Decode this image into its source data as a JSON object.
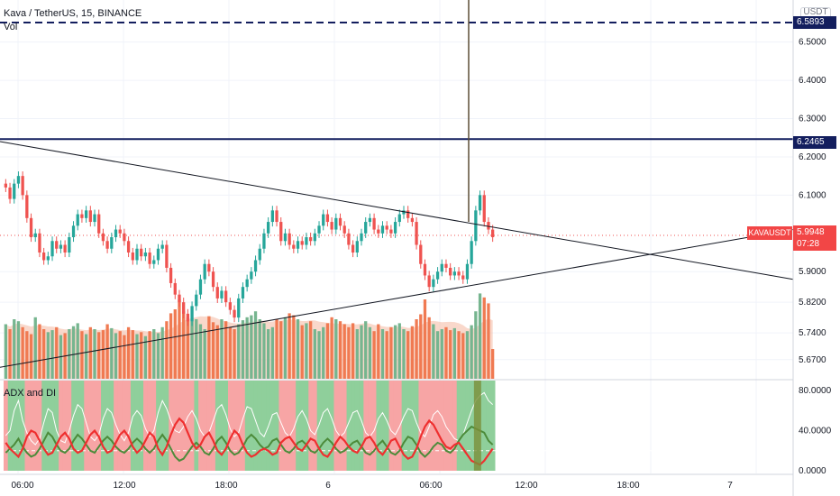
{
  "header": {
    "symbol_line": "Kava / TetherUS, 15, BINANCE",
    "volume_label": "Vol",
    "currency_button": "USDT"
  },
  "indicator": {
    "title": "ADX and DI"
  },
  "price_tags": {
    "current": "5.9948",
    "countdown": "07:28",
    "symbol": "KAVAUSDT",
    "level_line": "6.2465",
    "top_line": "6.5893"
  },
  "colors": {
    "up": "#26a69a",
    "down": "#ef5350",
    "level": "#131e5e",
    "trend": "#131722",
    "vol_up": "#76b58f",
    "vol_down": "#f07a52",
    "vol_ma": "#f4b8a1",
    "adx_bg_up": "#8fcf9b",
    "adx_bg_down": "#f7a5a5",
    "di_plus": "#4c8b3a",
    "di_minus": "#ef2f2f",
    "adx": "#ffffff"
  },
  "chart_data": {
    "type": "candlestick",
    "series_name": "KAVAUSDT",
    "ylim": [
      5.62,
      6.61
    ],
    "y_ticks": [
      "6.5000",
      "6.4000",
      "6.3000",
      "6.2000",
      "6.1000",
      "5.9000",
      "5.8200",
      "5.7400",
      "5.6700"
    ],
    "x_ticks": [
      "06:00",
      "12:00",
      "18:00",
      "6",
      "06:00",
      "12:00",
      "18:00",
      "7"
    ],
    "horizontal_levels": [
      6.2465,
      6.5893
    ],
    "last_price": 5.9948,
    "trend_lines": [
      {
        "from": [
          0,
          6.24
        ],
        "to": [
          880,
          5.88
        ]
      },
      {
        "from": [
          0,
          5.65
        ],
        "to": [
          880,
          6.01
        ]
      }
    ],
    "close": [
      6.12,
      6.09,
      6.13,
      6.15,
      6.1,
      6.04,
      5.99,
      6.0,
      5.95,
      5.93,
      5.94,
      5.98,
      5.96,
      5.97,
      5.95,
      5.99,
      6.02,
      6.05,
      6.04,
      6.06,
      6.03,
      6.05,
      6.0,
      5.98,
      5.96,
      5.99,
      6.01,
      6.0,
      5.98,
      5.95,
      5.93,
      5.96,
      5.94,
      5.95,
      5.92,
      5.93,
      5.96,
      5.97,
      5.91,
      5.87,
      5.84,
      5.82,
      5.79,
      5.77,
      5.81,
      5.84,
      5.88,
      5.92,
      5.9,
      5.86,
      5.83,
      5.85,
      5.82,
      5.8,
      5.78,
      5.83,
      5.86,
      5.88,
      5.9,
      5.93,
      5.96,
      6.0,
      6.03,
      6.06,
      6.03,
      5.98,
      6.0,
      5.97,
      5.96,
      5.98,
      5.97,
      5.99,
      5.98,
      6.0,
      6.02,
      6.05,
      6.03,
      6.01,
      6.04,
      6.02,
      6.0,
      5.97,
      5.95,
      5.98,
      6.0,
      6.03,
      6.04,
      6.01,
      6.0,
      6.02,
      6.01,
      6.0,
      6.03,
      6.05,
      6.06,
      6.04,
      6.03,
      5.97,
      5.92,
      5.89,
      5.86,
      5.88,
      5.9,
      5.92,
      5.91,
      5.89,
      5.9,
      5.89,
      5.88,
      5.92,
      5.98,
      6.06,
      6.1,
      6.03,
      6.01,
      5.99
    ],
    "volume": [
      55,
      50,
      60,
      58,
      52,
      48,
      45,
      62,
      55,
      50,
      47,
      49,
      52,
      44,
      46,
      50,
      53,
      56,
      48,
      45,
      52,
      50,
      47,
      49,
      55,
      51,
      46,
      48,
      44,
      52,
      49,
      45,
      47,
      43,
      48,
      50,
      46,
      52,
      58,
      66,
      70,
      80,
      68,
      62,
      58,
      60,
      55,
      50,
      63,
      57,
      54,
      60,
      58,
      52,
      50,
      55,
      59,
      62,
      64,
      68,
      60,
      56,
      50,
      52,
      60,
      58,
      62,
      66,
      64,
      60,
      54,
      56,
      58,
      50,
      48,
      52,
      56,
      62,
      60,
      58,
      55,
      52,
      56,
      50,
      54,
      58,
      52,
      48,
      55,
      50,
      48,
      52,
      54,
      56,
      50,
      48,
      53,
      60,
      65,
      80,
      62,
      55,
      48,
      50,
      52,
      49,
      51,
      48,
      46,
      48,
      54,
      68,
      86,
      82,
      76,
      30
    ],
    "adx": [
      35,
      40,
      60,
      70,
      50,
      38,
      30,
      26,
      32,
      48,
      62,
      58,
      40,
      30,
      28,
      40,
      55,
      66,
      62,
      48,
      34,
      30,
      36,
      52,
      62,
      58,
      46,
      36,
      30,
      38,
      54,
      60,
      55,
      42,
      34,
      40,
      58,
      70,
      62,
      50,
      40,
      38,
      44,
      54,
      60,
      52,
      40,
      34,
      38,
      50,
      62,
      66,
      56,
      42,
      34,
      38,
      52,
      64,
      62,
      50,
      38,
      34,
      44,
      56,
      58,
      48,
      38,
      34,
      42,
      54,
      60,
      52,
      40,
      36,
      46,
      58,
      62,
      52,
      40,
      34,
      38,
      48,
      58,
      60,
      50,
      38,
      34,
      40,
      52,
      58,
      50,
      40,
      36,
      44,
      54,
      62,
      60,
      48,
      38,
      34,
      44,
      56,
      60,
      54,
      44,
      38,
      32,
      30,
      36,
      48,
      60,
      70,
      75,
      78,
      70,
      66
    ],
    "di_plus": [
      18,
      22,
      26,
      32,
      24,
      18,
      14,
      16,
      22,
      30,
      38,
      34,
      26,
      20,
      18,
      22,
      30,
      36,
      32,
      26,
      20,
      18,
      24,
      30,
      34,
      30,
      24,
      20,
      18,
      22,
      28,
      32,
      28,
      22,
      18,
      22,
      30,
      36,
      30,
      22,
      14,
      10,
      12,
      18,
      24,
      28,
      24,
      18,
      16,
      22,
      30,
      34,
      28,
      20,
      16,
      18,
      24,
      32,
      36,
      32,
      26,
      22,
      24,
      30,
      32,
      26,
      20,
      18,
      22,
      28,
      30,
      26,
      20,
      18,
      22,
      28,
      32,
      28,
      22,
      18,
      20,
      24,
      28,
      30,
      24,
      18,
      16,
      20,
      26,
      30,
      24,
      18,
      16,
      20,
      28,
      34,
      32,
      26,
      18,
      14,
      18,
      24,
      28,
      26,
      20,
      18,
      22,
      30,
      36,
      40,
      44,
      42,
      40,
      38,
      30,
      26
    ],
    "di_minus": [
      28,
      22,
      18,
      14,
      22,
      34,
      40,
      38,
      30,
      22,
      16,
      18,
      26,
      34,
      38,
      32,
      22,
      18,
      20,
      28,
      36,
      40,
      34,
      24,
      18,
      20,
      28,
      36,
      40,
      34,
      24,
      18,
      22,
      30,
      38,
      34,
      22,
      16,
      24,
      36,
      46,
      52,
      48,
      38,
      28,
      22,
      26,
      34,
      38,
      30,
      20,
      16,
      22,
      32,
      40,
      36,
      26,
      18,
      14,
      16,
      20,
      22,
      20,
      16,
      18,
      28,
      32,
      34,
      28,
      22,
      20,
      26,
      32,
      30,
      22,
      16,
      14,
      20,
      28,
      34,
      30,
      24,
      20,
      18,
      24,
      32,
      34,
      28,
      20,
      16,
      22,
      30,
      32,
      24,
      16,
      12,
      14,
      22,
      34,
      44,
      50,
      46,
      38,
      30,
      24,
      22,
      26,
      28,
      22,
      16,
      10,
      8,
      6,
      10,
      16,
      22
    ]
  }
}
